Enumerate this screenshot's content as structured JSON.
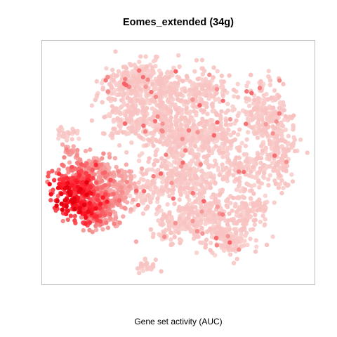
{
  "chart_data": {
    "type": "scatter",
    "title": "Eomes_extended (34g)",
    "xlabel": "Gene set activity (AUC)",
    "ylabel": "",
    "axes_visible": false,
    "grid": false,
    "legend": "none",
    "colors": {
      "background_cells": "#f9d6d4",
      "low": "#f9d6d4",
      "mid": "#f58a8a",
      "high": "#ff1a2a",
      "max": "#e6000f",
      "frame": "#bdbdbd"
    },
    "point_count_estimate": 3000,
    "encoding": "color = gene set activity (AUC); light pink = low, saturated red = high"
  }
}
